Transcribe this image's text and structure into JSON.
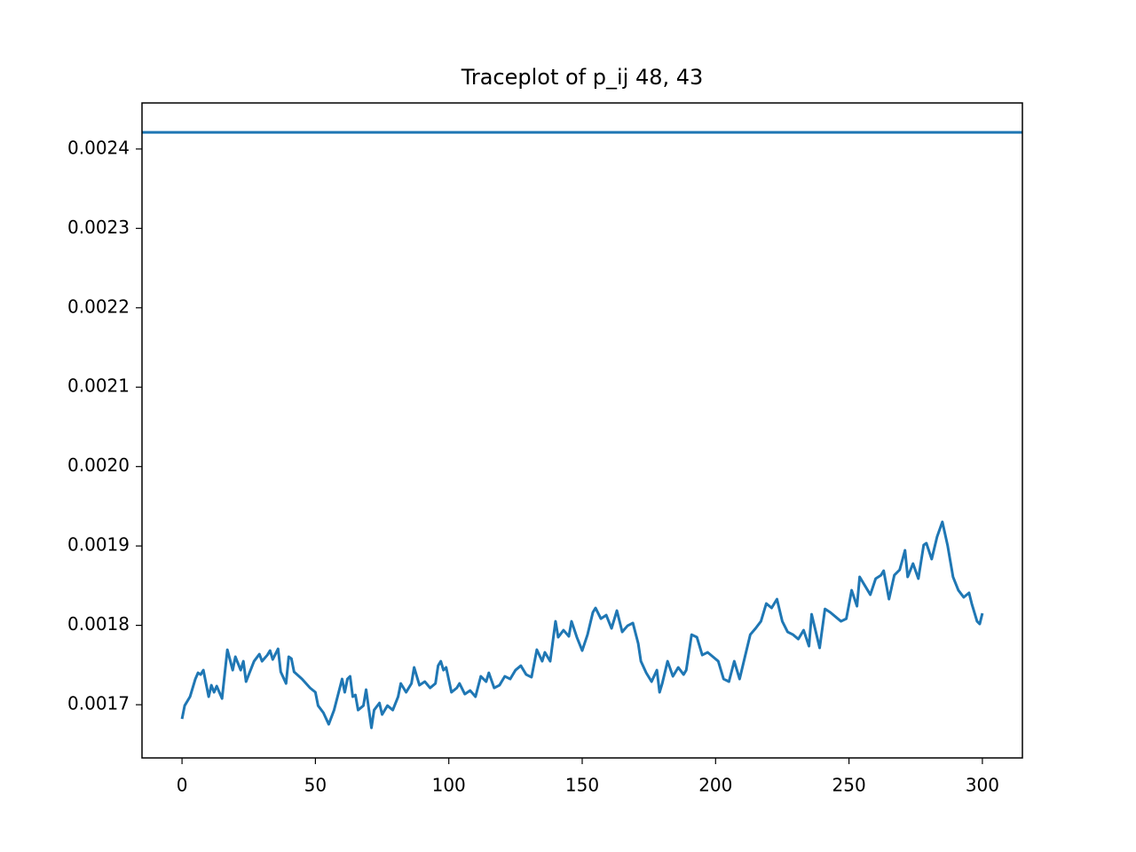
{
  "chart_data": {
    "type": "line",
    "title": "Traceplot of p_ij 48, 43",
    "xlim": [
      -15,
      315
    ],
    "ylim": [
      0.001633,
      0.002458
    ],
    "xticks": [
      0,
      50,
      100,
      150,
      200,
      250,
      300
    ],
    "yticks": [
      0.0017,
      0.0018,
      0.0019,
      {
        "value": 0.002,
        "label": "0.0020"
      },
      0.0021,
      0.0022,
      0.0023,
      0.0024
    ],
    "hlines": [
      {
        "value": 0.002421,
        "color": "#1f77b4"
      }
    ],
    "x": [
      0,
      1,
      3,
      5,
      6,
      7,
      8,
      10,
      11,
      12,
      13,
      15,
      17,
      19,
      20,
      22,
      23,
      24,
      27,
      29,
      30,
      32,
      33,
      34,
      36,
      37,
      39,
      40,
      41,
      42,
      45,
      48,
      50,
      51,
      53,
      55,
      57,
      60,
      61,
      62,
      63,
      64,
      65,
      66,
      68,
      69,
      71,
      72,
      74,
      75,
      77,
      79,
      81,
      82,
      84,
      86,
      87,
      89,
      91,
      93,
      95,
      96,
      97,
      98,
      99,
      101,
      103,
      104,
      106,
      108,
      110,
      112,
      114,
      115,
      117,
      119,
      121,
      123,
      125,
      127,
      129,
      131,
      133,
      135,
      136,
      138,
      140,
      141,
      143,
      145,
      146,
      148,
      150,
      152,
      154,
      155,
      157,
      159,
      161,
      163,
      165,
      167,
      169,
      171,
      172,
      174,
      176,
      178,
      179,
      180,
      182,
      184,
      186,
      188,
      189,
      191,
      193,
      195,
      197,
      199,
      201,
      203,
      205,
      207,
      209,
      211,
      213,
      215,
      217,
      219,
      221,
      223,
      225,
      227,
      229,
      231,
      233,
      235,
      236,
      239,
      241,
      243,
      245,
      247,
      249,
      251,
      253,
      254,
      256,
      258,
      260,
      262,
      263,
      265,
      267,
      269,
      271,
      272,
      274,
      276,
      278,
      279,
      281,
      283,
      285,
      287,
      289,
      291,
      293,
      295,
      296,
      298,
      299,
      300
    ],
    "series": [
      {
        "color": "#1f77b4",
        "values": [
          0.0016821,
          0.0016989,
          0.0017101,
          0.0017324,
          0.0017402,
          0.001738,
          0.0017436,
          0.0017101,
          0.0017246,
          0.0017157,
          0.0017235,
          0.0017078,
          0.0017693,
          0.0017436,
          0.0017604,
          0.0017436,
          0.0017548,
          0.0017291,
          0.0017548,
          0.0017637,
          0.0017548,
          0.0017626,
          0.0017682,
          0.001757,
          0.0017704,
          0.0017414,
          0.0017268,
          0.0017604,
          0.0017581,
          0.0017414,
          0.0017324,
          0.0017212,
          0.0017157,
          0.0016989,
          0.0016899,
          0.0016754,
          0.0016933,
          0.0017324,
          0.0017157,
          0.0017324,
          0.0017358,
          0.0017101,
          0.0017123,
          0.0016933,
          0.0016989,
          0.001719,
          0.0016709,
          0.0016933,
          0.0017022,
          0.0016877,
          0.0016989,
          0.0016933,
          0.0017101,
          0.0017268,
          0.0017157,
          0.0017268,
          0.001747,
          0.0017246,
          0.0017291,
          0.0017212,
          0.0017268,
          0.0017492,
          0.0017548,
          0.0017436,
          0.001747,
          0.0017157,
          0.0017212,
          0.0017268,
          0.0017134,
          0.0017179,
          0.0017101,
          0.0017358,
          0.0017291,
          0.0017402,
          0.0017212,
          0.0017246,
          0.0017358,
          0.0017324,
          0.0017436,
          0.0017492,
          0.001738,
          0.0017347,
          0.0017693,
          0.0017548,
          0.001766,
          0.0017548,
          0.0018051,
          0.001785,
          0.0017939,
          0.0017861,
          0.0018051,
          0.001785,
          0.0017682,
          0.0017883,
          0.0018163,
          0.0018219,
          0.0018084,
          0.0018129,
          0.0017962,
          0.0018185,
          0.0017917,
          0.0017995,
          0.0018029,
          0.0017771,
          0.0017548,
          0.0017402,
          0.0017291,
          0.0017436,
          0.0017157,
          0.0017268,
          0.0017548,
          0.0017358,
          0.001747,
          0.001738,
          0.0017436,
          0.0017883,
          0.001785,
          0.0017626,
          0.001766,
          0.0017604,
          0.0017548,
          0.0017324,
          0.0017291,
          0.0017548,
          0.0017324,
          0.0017604,
          0.0017883,
          0.0017962,
          0.0018051,
          0.0018275,
          0.0018219,
          0.001833,
          0.0018051,
          0.0017917,
          0.0017883,
          0.0017827,
          0.0017939,
          0.0017738,
          0.001814,
          0.0017716,
          0.0018207,
          0.0018163,
          0.0018107,
          0.0018051,
          0.0018084,
          0.0018442,
          0.0018241,
          0.001861,
          0.0018498,
          0.0018386,
          0.0018588,
          0.0018632,
          0.0018688,
          0.001833,
          0.0018632,
          0.0018699,
          0.0018945,
          0.001861,
          0.0018778,
          0.0018588,
          0.0019012,
          0.0019035,
          0.0018834,
          0.0019113,
          0.0019303,
          0.0019001,
          0.001861,
          0.0018442,
          0.0018353,
          0.0018409,
          0.0018275,
          0.0018051,
          0.0018017,
          0.0018152
        ]
      }
    ]
  }
}
